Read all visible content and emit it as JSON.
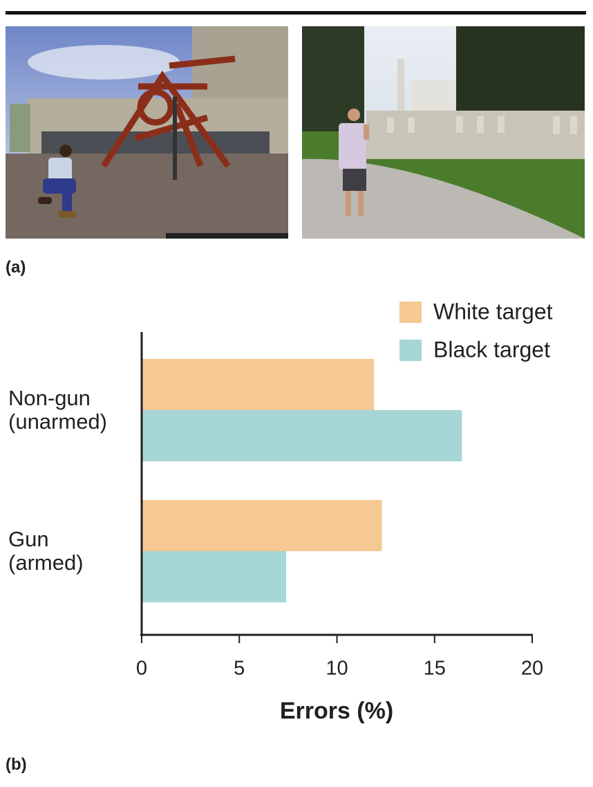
{
  "panel_labels": [
    "(a)",
    "(b)"
  ],
  "chart_data": {
    "type": "barh",
    "xlabel": "Errors (%)",
    "categories": [
      "Non-gun\n(unarmed)",
      "Gun\n(armed)"
    ],
    "series": [
      {
        "name": "White target",
        "color": "#f5c894",
        "values": [
          11.9,
          12.3
        ]
      },
      {
        "name": "Black target",
        "color": "#a6d6d6",
        "values": [
          16.4,
          7.4
        ]
      }
    ],
    "xlim": [
      0,
      20
    ],
    "xticks": [
      0,
      5,
      10,
      15,
      20
    ],
    "legend": "upper right",
    "grid": false
  }
}
